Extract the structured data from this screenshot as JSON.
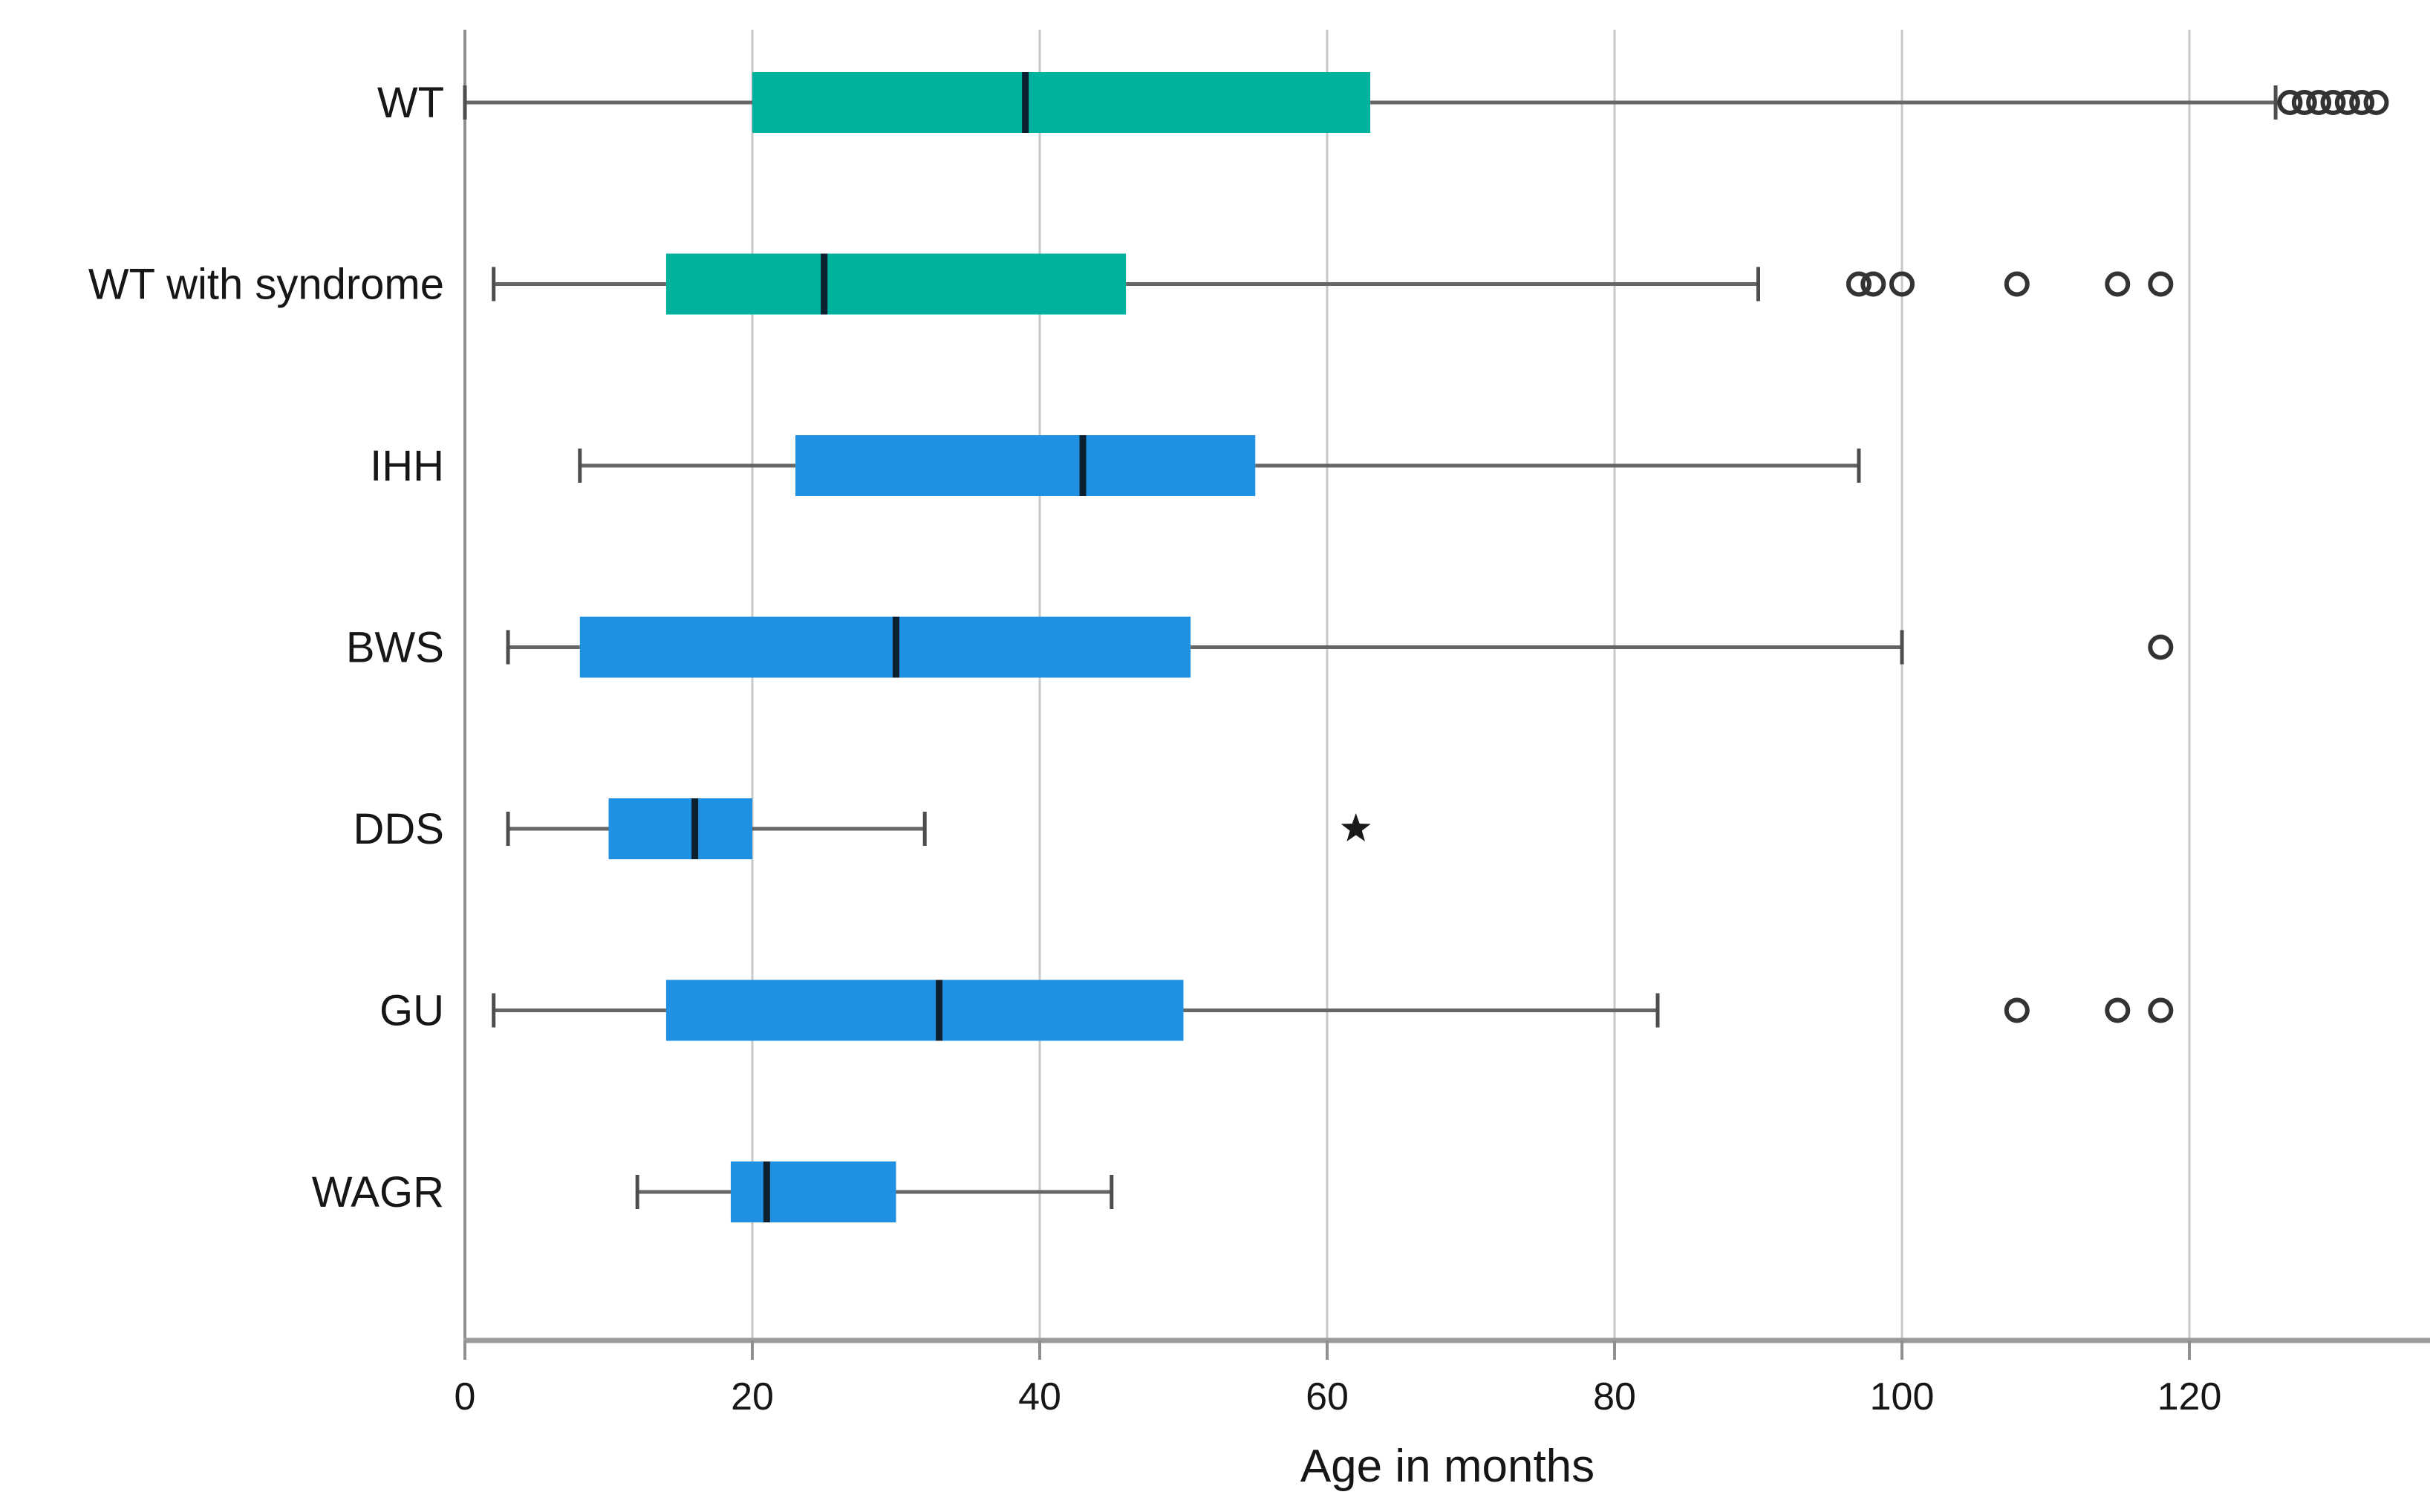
{
  "figure": {
    "background": "#ffffff"
  },
  "chart_data": {
    "type": "boxplot",
    "orientation": "horizontal",
    "title": "",
    "xlabel": "Age in months",
    "ylabel": "",
    "x_ticks": [
      0,
      20,
      40,
      60,
      80,
      100,
      120
    ],
    "xlim": [
      0,
      136
    ],
    "grid": "vertical-gridlines-at-ticks",
    "legend": "none",
    "categories": [
      "WT",
      "WT with syndrome",
      "IHH",
      "BWS",
      "DDS",
      "GU",
      "WAGR"
    ],
    "series": [
      {
        "category": "WT",
        "color_key": "teal",
        "whisker_low": 0,
        "q1": 20,
        "median": 39,
        "q3": 63,
        "whisker_high": 126,
        "outliers": [
          127,
          128,
          129,
          130,
          131,
          132,
          133
        ],
        "extreme_outliers": []
      },
      {
        "category": "WT with syndrome",
        "color_key": "teal",
        "whisker_low": 2,
        "q1": 14,
        "median": 25,
        "q3": 46,
        "whisker_high": 90,
        "outliers": [
          97,
          98,
          100,
          108,
          115,
          118
        ],
        "extreme_outliers": []
      },
      {
        "category": "IHH",
        "color_key": "blue",
        "whisker_low": 8,
        "q1": 23,
        "median": 43,
        "q3": 55,
        "whisker_high": 97,
        "outliers": [],
        "extreme_outliers": []
      },
      {
        "category": "BWS",
        "color_key": "blue",
        "whisker_low": 3,
        "q1": 8,
        "median": 30,
        "q3": 50.5,
        "whisker_high": 100,
        "outliers": [
          118
        ],
        "extreme_outliers": []
      },
      {
        "category": "DDS",
        "color_key": "blue",
        "whisker_low": 3,
        "q1": 10,
        "median": 16,
        "q3": 20,
        "whisker_high": 32,
        "outliers": [],
        "extreme_outliers": [
          62
        ]
      },
      {
        "category": "GU",
        "color_key": "blue",
        "whisker_low": 2,
        "q1": 14,
        "median": 33,
        "q3": 50,
        "whisker_high": 83,
        "outliers": [
          108,
          115,
          118
        ],
        "extreme_outliers": []
      },
      {
        "category": "WAGR",
        "color_key": "blue",
        "whisker_low": 12,
        "q1": 18.5,
        "median": 21,
        "q3": 30,
        "whisker_high": 45,
        "outliers": [],
        "extreme_outliers": []
      }
    ],
    "colors": {
      "teal": "#00b19e",
      "blue": "#2090e2",
      "median_line": "#0c2030",
      "whisker": "#666666",
      "gridline": "#c8c8c8",
      "axis_line": "#9b9b9b",
      "spine": "#8f8f8f",
      "outlier_stroke": "#333333",
      "text": "#161616"
    }
  }
}
